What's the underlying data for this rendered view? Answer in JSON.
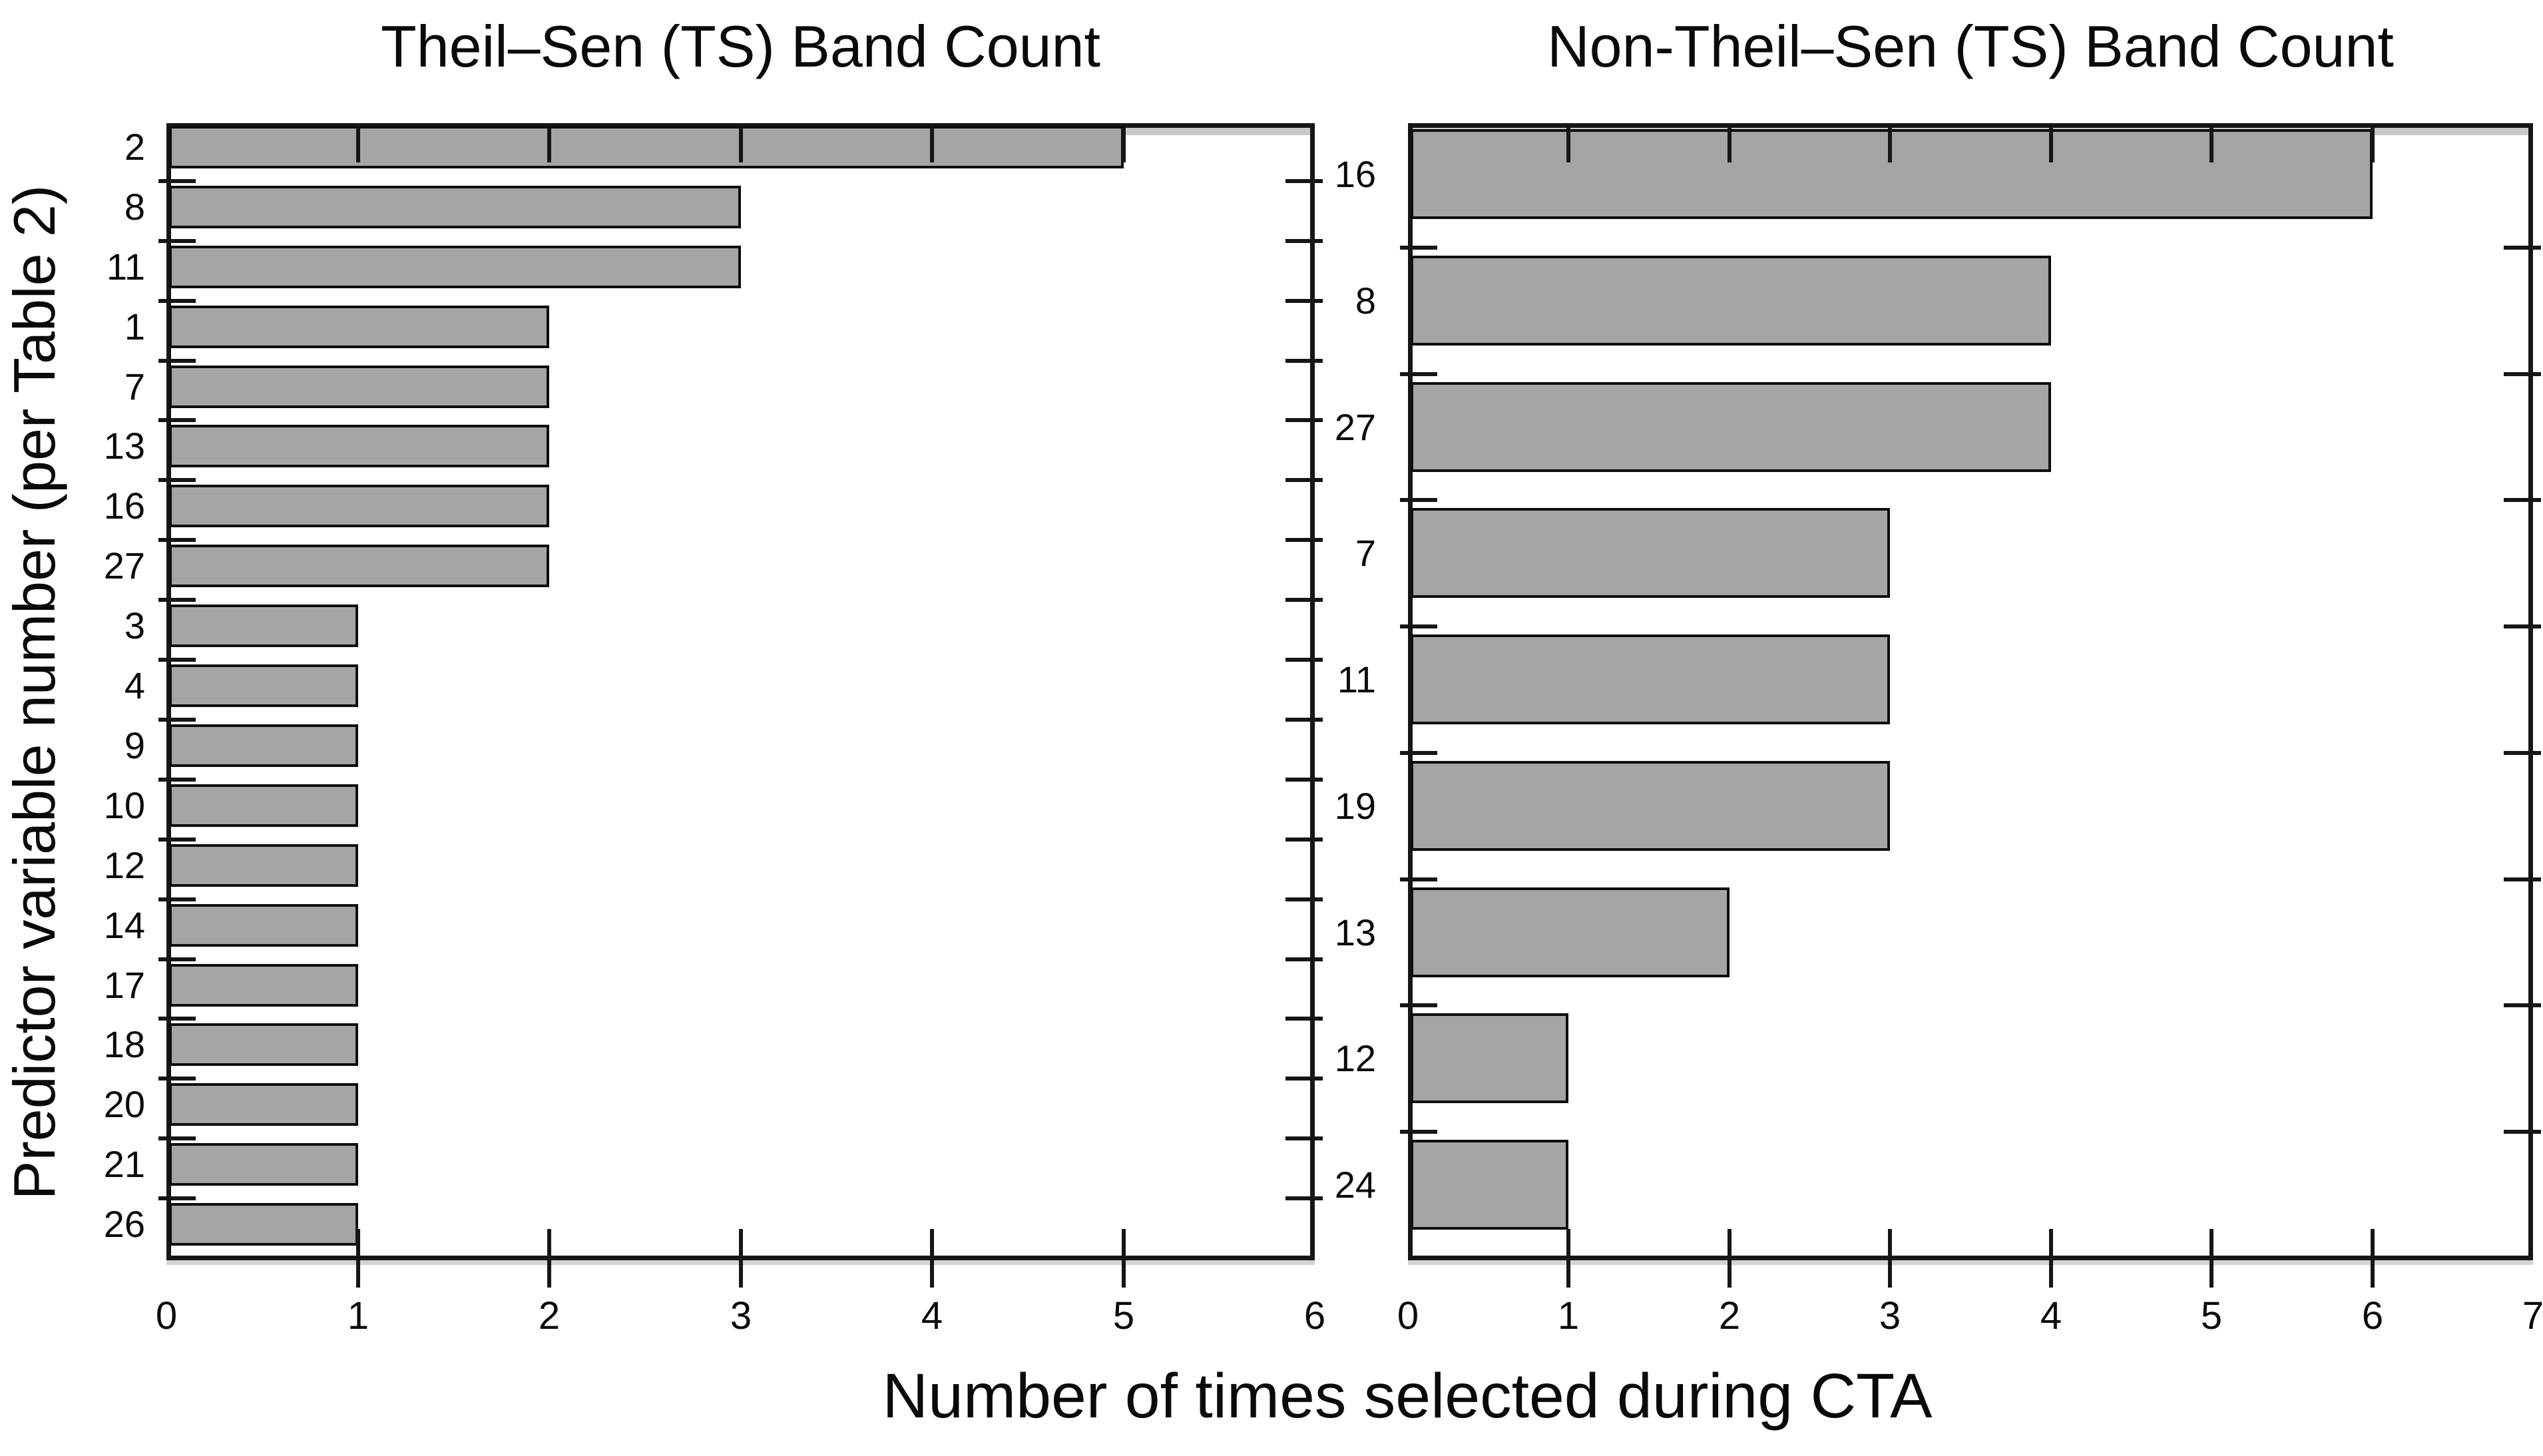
{
  "figure": {
    "background": "#ffffff",
    "text_color": "#0a0a0a",
    "axis_color": "#161616",
    "shared_xlabel": "Number of times selected during CTA"
  },
  "chart_data": [
    {
      "type": "bar",
      "orientation": "horizontal",
      "title": "Theil–Sen (TS) Band Count",
      "ylabel": "Predictor variable number (per Table 2)",
      "xlabel": "Number of times selected during CTA",
      "categories": [
        "2",
        "8",
        "11",
        "1",
        "7",
        "13",
        "16",
        "27",
        "3",
        "4",
        "9",
        "10",
        "12",
        "14",
        "17",
        "18",
        "20",
        "21",
        "26"
      ],
      "values": [
        5,
        3,
        3,
        2,
        2,
        2,
        2,
        2,
        1,
        1,
        1,
        1,
        1,
        1,
        1,
        1,
        1,
        1,
        1
      ],
      "xlim": [
        0,
        6
      ],
      "xticks": [
        0,
        1,
        2,
        3,
        4,
        5,
        6
      ],
      "grid": false,
      "legend": null,
      "bar_fill": "#a5a5a5",
      "bar_border": "#0e0e0e"
    },
    {
      "type": "bar",
      "orientation": "horizontal",
      "title": "Non-Theil–Sen (TS) Band Count",
      "ylabel": "",
      "xlabel": "Number of times selected during CTA",
      "categories": [
        "16",
        "8",
        "27",
        "7",
        "11",
        "19",
        "13",
        "12",
        "24"
      ],
      "values": [
        6,
        4,
        4,
        3,
        3,
        3,
        2,
        1,
        1
      ],
      "xlim": [
        0,
        7
      ],
      "xticks": [
        0,
        1,
        2,
        3,
        4,
        5,
        6,
        7
      ],
      "grid": false,
      "legend": null,
      "bar_fill": "#a5a5a5",
      "bar_border": "#0e0e0e"
    }
  ]
}
